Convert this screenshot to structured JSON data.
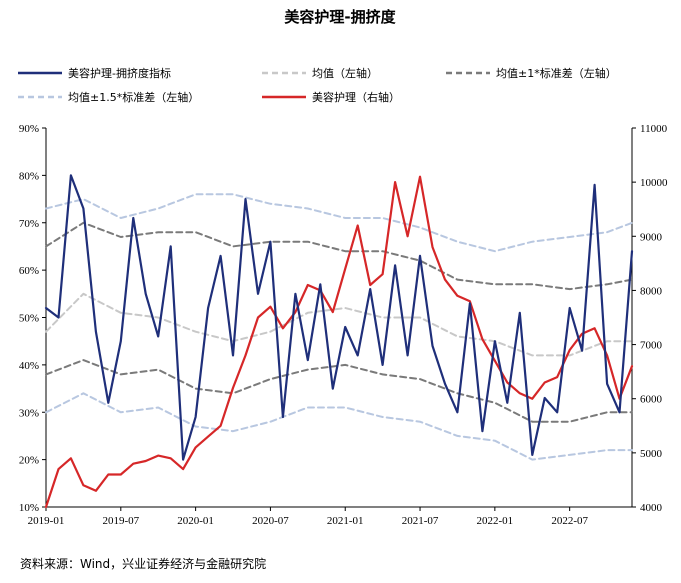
{
  "chart_data": {
    "type": "line",
    "title": "美容护理-拥挤度",
    "source": "资料来源：Wind，兴业证券经济与金融研究院",
    "x_ticks": [
      "2019-01",
      "2019-07",
      "2020-01",
      "2020-07",
      "2021-01",
      "2021-07",
      "2022-01",
      "2022-07"
    ],
    "xlim": [
      "2019-01",
      "2022-12"
    ],
    "y_left": {
      "ylim": [
        10,
        90
      ],
      "ticks": [
        10,
        20,
        30,
        40,
        50,
        60,
        70,
        80,
        90
      ],
      "tick_labels": [
        "10%",
        "20%",
        "30%",
        "40%",
        "50%",
        "60%",
        "70%",
        "80%",
        "90%"
      ]
    },
    "y_right": {
      "ylim": [
        4000,
        11000
      ],
      "ticks": [
        4000,
        5000,
        6000,
        7000,
        8000,
        9000,
        10000,
        11000
      ],
      "tick_labels": [
        "4000",
        "5000",
        "6000",
        "7000",
        "8000",
        "9000",
        "10000",
        "11000"
      ]
    },
    "legend_placement": "top",
    "grid": false,
    "series": [
      {
        "name": "美容护理-拥挤度指标",
        "axis": "left",
        "color": "#1f2f7a",
        "style": "solid",
        "x": [
          "2019-01",
          "2019-02",
          "2019-03",
          "2019-04",
          "2019-05",
          "2019-06",
          "2019-07",
          "2019-08",
          "2019-09",
          "2019-10",
          "2019-11",
          "2019-12",
          "2020-01",
          "2020-02",
          "2020-03",
          "2020-04",
          "2020-05",
          "2020-06",
          "2020-07",
          "2020-08",
          "2020-09",
          "2020-10",
          "2020-11",
          "2020-12",
          "2021-01",
          "2021-02",
          "2021-03",
          "2021-04",
          "2021-05",
          "2021-06",
          "2021-07",
          "2021-08",
          "2021-09",
          "2021-10",
          "2021-11",
          "2021-12",
          "2022-01",
          "2022-02",
          "2022-03",
          "2022-04",
          "2022-05",
          "2022-06",
          "2022-07",
          "2022-08",
          "2022-09",
          "2022-10",
          "2022-11",
          "2022-12"
        ],
        "values": [
          52,
          50,
          80,
          73,
          47,
          32,
          45,
          71,
          55,
          46,
          65,
          20,
          29,
          52,
          63,
          42,
          75,
          55,
          66,
          29,
          55,
          41,
          57,
          35,
          48,
          42,
          56,
          40,
          61,
          42,
          63,
          44,
          36,
          30,
          53,
          26,
          45,
          32,
          51,
          21,
          33,
          30,
          52,
          43,
          78,
          36,
          30,
          64
        ]
      },
      {
        "name": "均值（左轴）",
        "axis": "left",
        "color": "#c8c8c8",
        "style": "dashed",
        "x": [
          "2019-01",
          "2019-04",
          "2019-07",
          "2019-10",
          "2020-01",
          "2020-04",
          "2020-07",
          "2020-10",
          "2021-01",
          "2021-04",
          "2021-07",
          "2021-10",
          "2022-01",
          "2022-04",
          "2022-07",
          "2022-10",
          "2022-12"
        ],
        "values": [
          47,
          55,
          51,
          50,
          47,
          45,
          47,
          51,
          52,
          50,
          50,
          46,
          45,
          42,
          42,
          45,
          45
        ]
      },
      {
        "name": "均值±1*标准差（左轴）",
        "axis": "left",
        "color": "#7a7a7a",
        "style": "dashed",
        "x": [
          "2019-01",
          "2019-04",
          "2019-07",
          "2019-10",
          "2020-01",
          "2020-04",
          "2020-07",
          "2020-10",
          "2021-01",
          "2021-04",
          "2021-07",
          "2021-10",
          "2022-01",
          "2022-04",
          "2022-07",
          "2022-10",
          "2022-12"
        ],
        "values": [
          65,
          70,
          67,
          68,
          68,
          65,
          66,
          66,
          64,
          64,
          62,
          58,
          57,
          57,
          56,
          57,
          58
        ]
      },
      {
        "name": "",
        "axis": "left",
        "color": "#7a7a7a",
        "style": "dashed",
        "x": [
          "2019-01",
          "2019-04",
          "2019-07",
          "2019-10",
          "2020-01",
          "2020-04",
          "2020-07",
          "2020-10",
          "2021-01",
          "2021-04",
          "2021-07",
          "2021-10",
          "2022-01",
          "2022-04",
          "2022-07",
          "2022-10",
          "2022-12"
        ],
        "values": [
          38,
          41,
          38,
          39,
          35,
          34,
          37,
          39,
          40,
          38,
          37,
          34,
          32,
          28,
          28,
          30,
          30
        ]
      },
      {
        "name": "均值±1.5*标准差（左轴）",
        "axis": "left",
        "color": "#b8c7e0",
        "style": "dashed",
        "x": [
          "2019-01",
          "2019-04",
          "2019-07",
          "2019-10",
          "2020-01",
          "2020-04",
          "2020-07",
          "2020-10",
          "2021-01",
          "2021-04",
          "2021-07",
          "2021-10",
          "2022-01",
          "2022-04",
          "2022-07",
          "2022-10",
          "2022-12"
        ],
        "values": [
          73,
          75,
          71,
          73,
          76,
          76,
          74,
          73,
          71,
          71,
          69,
          66,
          64,
          66,
          67,
          68,
          70
        ]
      },
      {
        "name": "",
        "axis": "left",
        "color": "#b8c7e0",
        "style": "dashed",
        "x": [
          "2019-01",
          "2019-04",
          "2019-07",
          "2019-10",
          "2020-01",
          "2020-04",
          "2020-07",
          "2020-10",
          "2021-01",
          "2021-04",
          "2021-07",
          "2021-10",
          "2022-01",
          "2022-04",
          "2022-07",
          "2022-10",
          "2022-12"
        ],
        "values": [
          30,
          34,
          30,
          31,
          27,
          26,
          28,
          31,
          31,
          29,
          28,
          25,
          24,
          20,
          21,
          22,
          22
        ]
      },
      {
        "name": "美容护理（右轴）",
        "axis": "right",
        "color": "#d62728",
        "style": "solid",
        "x": [
          "2019-01",
          "2019-02",
          "2019-03",
          "2019-04",
          "2019-05",
          "2019-06",
          "2019-07",
          "2019-08",
          "2019-09",
          "2019-10",
          "2019-11",
          "2019-12",
          "2020-01",
          "2020-02",
          "2020-03",
          "2020-04",
          "2020-05",
          "2020-06",
          "2020-07",
          "2020-08",
          "2020-09",
          "2020-10",
          "2020-11",
          "2020-12",
          "2021-01",
          "2021-02",
          "2021-03",
          "2021-04",
          "2021-05",
          "2021-06",
          "2021-07",
          "2021-08",
          "2021-09",
          "2021-10",
          "2021-11",
          "2021-12",
          "2022-01",
          "2022-02",
          "2022-03",
          "2022-04",
          "2022-05",
          "2022-06",
          "2022-07",
          "2022-08",
          "2022-09",
          "2022-10",
          "2022-11",
          "2022-12"
        ],
        "values": [
          4000,
          4700,
          4900,
          4400,
          4300,
          4600,
          4600,
          4800,
          4850,
          4950,
          4900,
          4700,
          5100,
          5300,
          5500,
          6200,
          6800,
          7500,
          7700,
          7300,
          7600,
          8100,
          8000,
          7600,
          8400,
          9200,
          8100,
          8300,
          10000,
          9000,
          10100,
          8800,
          8200,
          7900,
          7800,
          7100,
          6700,
          6300,
          6100,
          6000,
          6300,
          6400,
          6900,
          7200,
          7300,
          6800,
          6000,
          6600
        ]
      }
    ]
  }
}
